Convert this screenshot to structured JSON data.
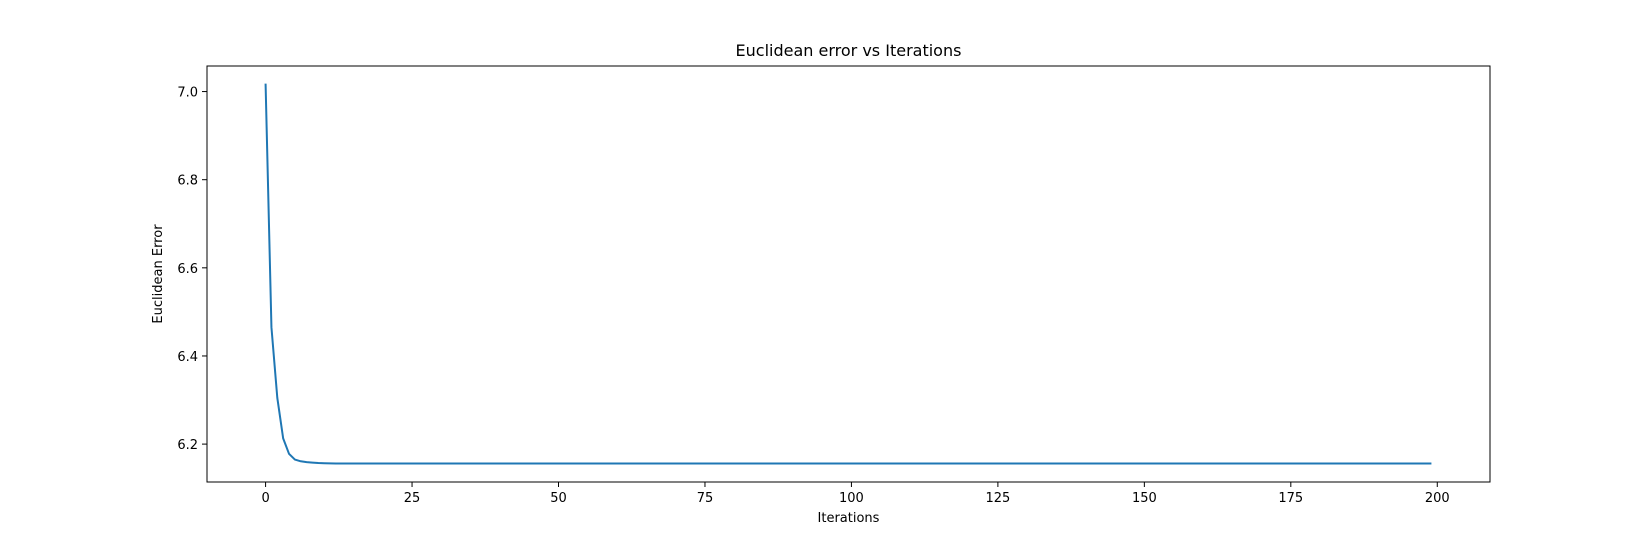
{
  "chart_data": {
    "type": "line",
    "title": "Euclidean error vs Iterations",
    "xlabel": "Iterations",
    "ylabel": "Euclidean Error",
    "xlim": [
      -10,
      209
    ],
    "ylim": [
      6.114,
      7.058
    ],
    "xticks": [
      0,
      25,
      50,
      75,
      100,
      125,
      150,
      175,
      200
    ],
    "yticks": [
      6.2,
      6.4,
      6.6,
      6.8,
      7.0
    ],
    "grid": false,
    "line_color": "#1f77b4",
    "series": [
      {
        "x_start": 0,
        "x_end": 199,
        "values": [
          7.018,
          6.465,
          6.305,
          6.213,
          6.178,
          6.165,
          6.161,
          6.159,
          6.158,
          6.157,
          6.1565,
          6.1562,
          6.156
        ],
        "plateau_value": 6.156
      }
    ]
  }
}
